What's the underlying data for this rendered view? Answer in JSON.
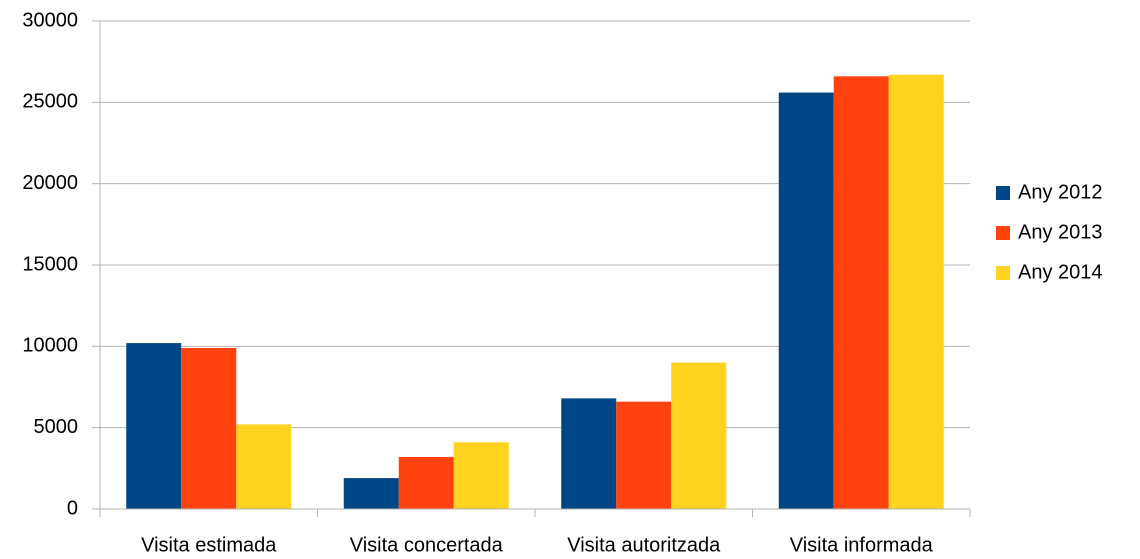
{
  "chart_data": {
    "type": "bar",
    "categories": [
      "Visita estimada",
      "Visita concertada",
      "Visita autoritzada",
      "Visita informada"
    ],
    "series": [
      {
        "name": "Any 2012",
        "color": "#004586",
        "values": [
          10200,
          1900,
          6800,
          25600
        ]
      },
      {
        "name": "Any 2013",
        "color": "#ff420e",
        "values": [
          9900,
          3200,
          6600,
          26600
        ]
      },
      {
        "name": "Any 2014",
        "color": "#ffd320",
        "values": [
          5200,
          4100,
          9000,
          26700
        ]
      }
    ],
    "ylim": [
      0,
      30000
    ],
    "yticks": [
      0,
      5000,
      10000,
      15000,
      20000,
      25000,
      30000
    ],
    "grid": true,
    "legend": "right"
  }
}
